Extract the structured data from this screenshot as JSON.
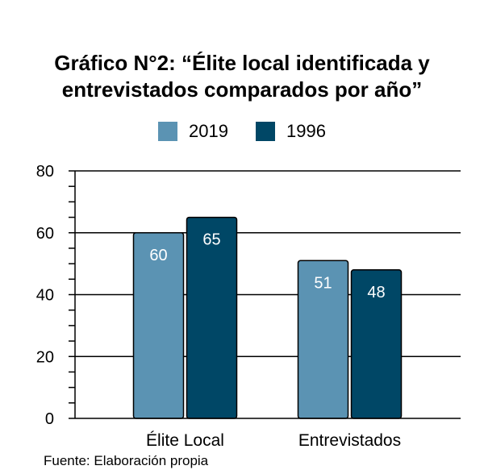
{
  "chart_data": {
    "type": "bar",
    "title_lines": [
      "Gráfico N°2: “Élite local identificada y",
      "entrevistados comparados por año”"
    ],
    "categories": [
      "Élite Local",
      "Entrevistados"
    ],
    "series": [
      {
        "name": "2019",
        "values": [
          60,
          51
        ],
        "color": "#5b93b3"
      },
      {
        "name": "1996",
        "values": [
          65,
          48
        ],
        "color": "#004766"
      }
    ],
    "ylim": [
      0,
      80
    ],
    "yticks": [
      0,
      20,
      40,
      60,
      80
    ],
    "grid": true,
    "legend_position": "top-center",
    "source": "Fuente: Elaboración propia"
  }
}
